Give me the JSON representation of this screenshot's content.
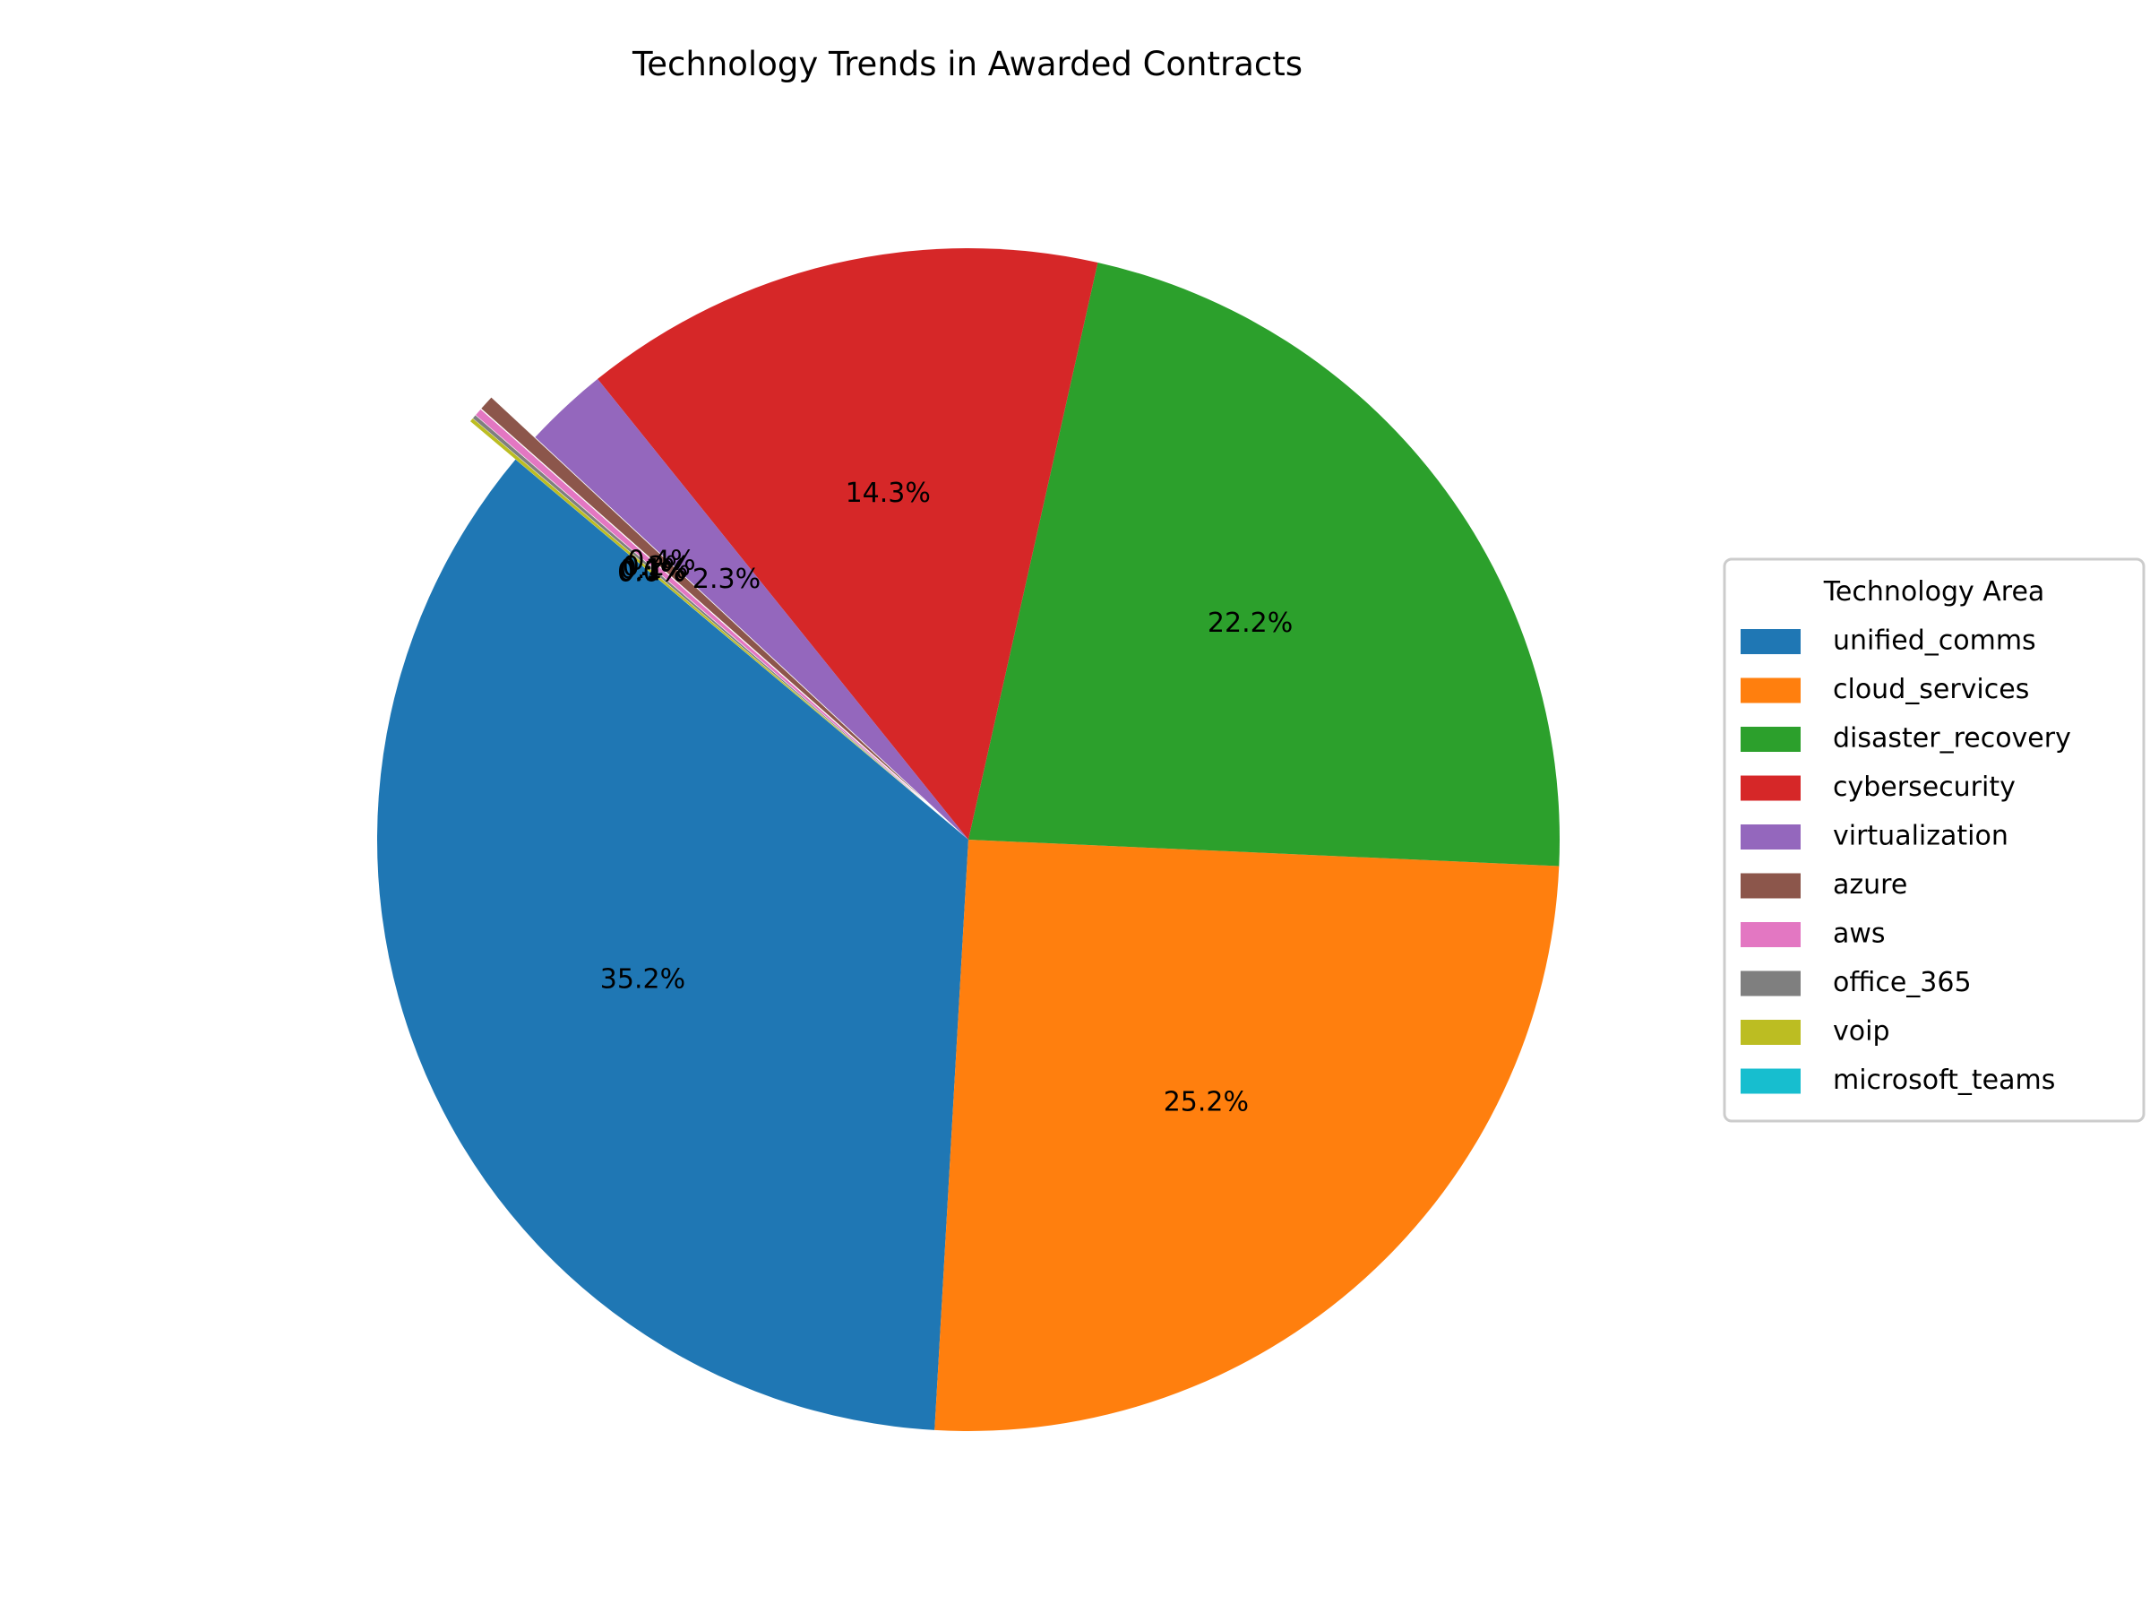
{
  "chart_data": {
    "type": "pie",
    "title": "Technology Trends in Awarded Contracts",
    "legend_title": "Technology Area",
    "legend_position": "right",
    "start_angle_deg": 140,
    "direction": "counterclockwise",
    "slices": [
      {
        "label": "unified_comms",
        "value": 35.2,
        "pct_label": "35.2%",
        "color": "#1f77b4",
        "explode": false
      },
      {
        "label": "cloud_services",
        "value": 25.2,
        "pct_label": "25.2%",
        "color": "#ff7f0e",
        "explode": false
      },
      {
        "label": "disaster_recovery",
        "value": 22.2,
        "pct_label": "22.2%",
        "color": "#2ca02c",
        "explode": false
      },
      {
        "label": "cybersecurity",
        "value": 14.3,
        "pct_label": "14.3%",
        "color": "#d62728",
        "explode": false
      },
      {
        "label": "virtualization",
        "value": 2.3,
        "pct_label": "2.3%",
        "color": "#9467bd",
        "explode": false
      },
      {
        "label": "azure",
        "value": 0.4,
        "pct_label": "0.4%",
        "color": "#8c564b",
        "explode": true
      },
      {
        "label": "aws",
        "value": 0.2,
        "pct_label": "0.2%",
        "color": "#e377c2",
        "explode": true
      },
      {
        "label": "office_365",
        "value": 0.1,
        "pct_label": "0.1%",
        "color": "#7f7f7f",
        "explode": true
      },
      {
        "label": "voip",
        "value": 0.1,
        "pct_label": "0.1%",
        "color": "#bcbd22",
        "explode": true
      },
      {
        "label": "microsoft_teams",
        "value": 0.0,
        "pct_label": "0.0%",
        "color": "#17becf",
        "explode": true
      }
    ]
  }
}
